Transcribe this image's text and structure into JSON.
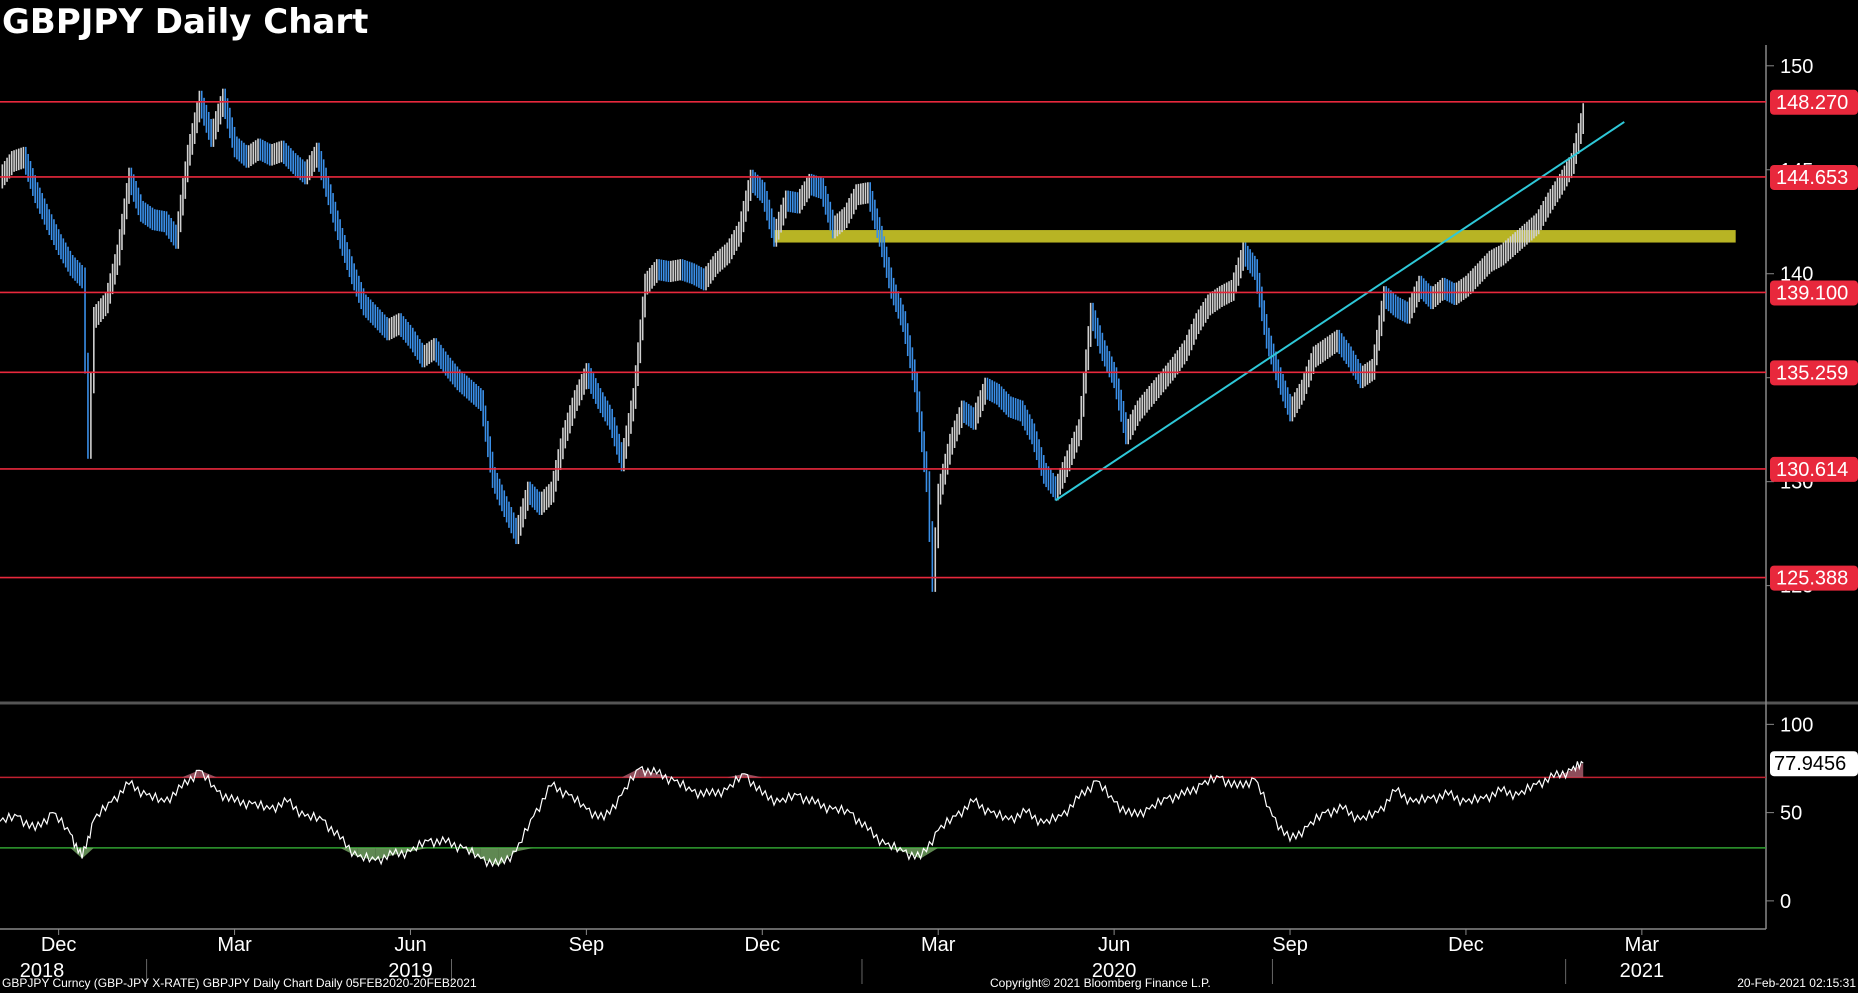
{
  "title": "GBPJPY Daily Chart",
  "footer": {
    "left": "GBPJPY Curncy (GBP-JPY X-RATE) GBPJPY Daily Chart  Daily 05FEB2020-20FEB2021",
    "center": "Copyright© 2021 Bloomberg Finance L.P.",
    "right": "20-Feb-2021 02:15:31"
  },
  "colors": {
    "background": "#000000",
    "price_up": "#d0d0d0",
    "price_down": "#3a8fe8",
    "level_line": "#e8283c",
    "trendline": "#2ec8d8",
    "zone": "#d8d42a",
    "rsi_line": "#ffffff",
    "rsi_upper": "#c02030",
    "rsi_lower": "#30a030"
  },
  "chart_data": [
    {
      "type": "line",
      "name": "price",
      "x_ticks": [
        {
          "month": "Dec",
          "year": "2018",
          "t": 1
        },
        {
          "month": "Mar",
          "year": "",
          "t": 4
        },
        {
          "month": "Jun",
          "year": "2019",
          "t": 7
        },
        {
          "month": "Sep",
          "year": "",
          "t": 10
        },
        {
          "month": "Dec",
          "year": "",
          "t": 13
        },
        {
          "month": "Mar",
          "year": "",
          "t": 16
        },
        {
          "month": "Jun",
          "year": "2020",
          "t": 19
        },
        {
          "month": "Sep",
          "year": "",
          "t": 22
        },
        {
          "month": "Dec",
          "year": "",
          "t": 25
        },
        {
          "month": "Mar",
          "year": "2021",
          "t": 28
        }
      ],
      "xlim": [
        0,
        30.1
      ],
      "ylim": [
        119.5,
        151
      ],
      "y_ticks": [
        125,
        130,
        135,
        140,
        145,
        150
      ],
      "horizontal_levels": [
        148.27,
        144.653,
        139.1,
        135.259,
        130.614,
        125.388
      ],
      "level_labels": [
        "148.270",
        "144.653",
        "139.100",
        "135.259",
        "130.614",
        "125.388"
      ],
      "last_price_hidden": "147.736",
      "trendline": {
        "x": [
          18.0,
          27.7
        ],
        "y": [
          129.1,
          147.3
        ]
      },
      "zone": {
        "x": [
          13.2,
          29.6
        ],
        "y": [
          141.5,
          142.1
        ]
      },
      "series": [
        {
          "values": [
            [
              0.0,
              144.6
            ],
            [
              0.2,
              145.4
            ],
            [
              0.4,
              145.6
            ],
            [
              0.6,
              143.9
            ],
            [
              0.8,
              142.6
            ],
            [
              1.0,
              141.4
            ],
            [
              1.2,
              140.4
            ],
            [
              1.4,
              139.8
            ],
            [
              1.5,
              131.6
            ],
            [
              1.6,
              137.9
            ],
            [
              1.8,
              138.6
            ],
            [
              2.0,
              140.9
            ],
            [
              2.2,
              144.6
            ],
            [
              2.4,
              143.0
            ],
            [
              2.6,
              142.6
            ],
            [
              2.8,
              142.5
            ],
            [
              3.0,
              141.7
            ],
            [
              3.2,
              145.7
            ],
            [
              3.4,
              148.3
            ],
            [
              3.6,
              146.6
            ],
            [
              3.8,
              148.4
            ],
            [
              4.0,
              146.1
            ],
            [
              4.2,
              145.6
            ],
            [
              4.4,
              146.0
            ],
            [
              4.6,
              145.7
            ],
            [
              4.8,
              145.9
            ],
            [
              5.0,
              145.3
            ],
            [
              5.2,
              144.8
            ],
            [
              5.4,
              145.8
            ],
            [
              5.6,
              143.8
            ],
            [
              5.8,
              141.7
            ],
            [
              6.0,
              140.0
            ],
            [
              6.2,
              138.5
            ],
            [
              6.4,
              137.9
            ],
            [
              6.6,
              137.3
            ],
            [
              6.8,
              137.6
            ],
            [
              7.0,
              136.9
            ],
            [
              7.2,
              136.0
            ],
            [
              7.4,
              136.4
            ],
            [
              7.6,
              135.6
            ],
            [
              7.8,
              134.9
            ],
            [
              8.0,
              134.4
            ],
            [
              8.2,
              133.9
            ],
            [
              8.4,
              130.2
            ],
            [
              8.6,
              128.8
            ],
            [
              8.8,
              127.5
            ],
            [
              9.0,
              129.5
            ],
            [
              9.2,
              128.9
            ],
            [
              9.4,
              129.5
            ],
            [
              9.6,
              132.1
            ],
            [
              9.8,
              133.9
            ],
            [
              10.0,
              135.2
            ],
            [
              10.2,
              134.0
            ],
            [
              10.4,
              133.0
            ],
            [
              10.6,
              131.0
            ],
            [
              10.8,
              134.0
            ],
            [
              11.0,
              139.5
            ],
            [
              11.2,
              140.2
            ],
            [
              11.4,
              140.1
            ],
            [
              11.6,
              140.2
            ],
            [
              11.8,
              140.0
            ],
            [
              12.0,
              139.7
            ],
            [
              12.2,
              140.5
            ],
            [
              12.4,
              141.0
            ],
            [
              12.6,
              142.0
            ],
            [
              12.8,
              144.5
            ],
            [
              13.0,
              143.9
            ],
            [
              13.2,
              141.8
            ],
            [
              13.4,
              143.5
            ],
            [
              13.6,
              143.4
            ],
            [
              13.8,
              144.3
            ],
            [
              14.0,
              144.1
            ],
            [
              14.2,
              142.2
            ],
            [
              14.4,
              142.7
            ],
            [
              14.6,
              143.8
            ],
            [
              14.8,
              143.9
            ],
            [
              15.0,
              141.8
            ],
            [
              15.2,
              139.3
            ],
            [
              15.4,
              137.7
            ],
            [
              15.6,
              134.8
            ],
            [
              15.8,
              130.0
            ],
            [
              15.9,
              125.2
            ],
            [
              16.0,
              129.4
            ],
            [
              16.2,
              131.8
            ],
            [
              16.4,
              133.4
            ],
            [
              16.6,
              133.0
            ],
            [
              16.8,
              134.5
            ],
            [
              17.0,
              134.2
            ],
            [
              17.2,
              133.6
            ],
            [
              17.4,
              133.4
            ],
            [
              17.6,
              132.3
            ],
            [
              17.8,
              130.4
            ],
            [
              18.0,
              129.6
            ],
            [
              18.2,
              131.0
            ],
            [
              18.4,
              132.5
            ],
            [
              18.6,
              138.1
            ],
            [
              18.8,
              136.3
            ],
            [
              19.0,
              135.0
            ],
            [
              19.2,
              132.3
            ],
            [
              19.4,
              133.4
            ],
            [
              19.6,
              134.1
            ],
            [
              19.8,
              134.8
            ],
            [
              20.0,
              135.5
            ],
            [
              20.2,
              136.3
            ],
            [
              20.4,
              137.6
            ],
            [
              20.6,
              138.5
            ],
            [
              20.8,
              138.9
            ],
            [
              21.0,
              139.2
            ],
            [
              21.2,
              141.0
            ],
            [
              21.4,
              140.2
            ],
            [
              21.6,
              136.9
            ],
            [
              21.8,
              135.0
            ],
            [
              22.0,
              133.4
            ],
            [
              22.2,
              134.4
            ],
            [
              22.4,
              136.0
            ],
            [
              22.6,
              136.4
            ],
            [
              22.8,
              136.8
            ],
            [
              23.0,
              136.0
            ],
            [
              23.2,
              135.0
            ],
            [
              23.4,
              135.4
            ],
            [
              23.6,
              138.9
            ],
            [
              23.8,
              138.4
            ],
            [
              24.0,
              138.1
            ],
            [
              24.2,
              139.4
            ],
            [
              24.4,
              138.8
            ],
            [
              24.6,
              139.3
            ],
            [
              24.8,
              139.0
            ],
            [
              25.0,
              139.4
            ],
            [
              25.2,
              140.0
            ],
            [
              25.4,
              140.6
            ],
            [
              25.6,
              140.9
            ],
            [
              25.8,
              141.4
            ],
            [
              26.0,
              141.9
            ],
            [
              26.2,
              142.4
            ],
            [
              26.4,
              143.4
            ],
            [
              26.6,
              144.3
            ],
            [
              26.8,
              145.3
            ],
            [
              27.0,
              147.7
            ]
          ]
        }
      ]
    },
    {
      "type": "line",
      "name": "rsi",
      "ylim": [
        -8,
        107
      ],
      "y_ticks": [
        0,
        50,
        100
      ],
      "thresholds": {
        "upper": 70,
        "lower": 30
      },
      "last_value_label": "77.9456",
      "xlim": [
        0,
        30.1
      ],
      "series": [
        {
          "values": [
            [
              0.0,
              45
            ],
            [
              0.3,
              48
            ],
            [
              0.6,
              40
            ],
            [
              0.9,
              50
            ],
            [
              1.2,
              38
            ],
            [
              1.4,
              24
            ],
            [
              1.6,
              46
            ],
            [
              1.9,
              56
            ],
            [
              2.2,
              66
            ],
            [
              2.5,
              60
            ],
            [
              2.8,
              56
            ],
            [
              3.1,
              64
            ],
            [
              3.4,
              74
            ],
            [
              3.7,
              62
            ],
            [
              4.0,
              56
            ],
            [
              4.3,
              55
            ],
            [
              4.6,
              52
            ],
            [
              4.9,
              56
            ],
            [
              5.2,
              48
            ],
            [
              5.5,
              46
            ],
            [
              5.8,
              35
            ],
            [
              6.1,
              25
            ],
            [
              6.4,
              23
            ],
            [
              6.7,
              26
            ],
            [
              7.0,
              28
            ],
            [
              7.3,
              34
            ],
            [
              7.6,
              33
            ],
            [
              7.9,
              30
            ],
            [
              8.2,
              24
            ],
            [
              8.5,
              20
            ],
            [
              8.8,
              28
            ],
            [
              9.1,
              48
            ],
            [
              9.4,
              65
            ],
            [
              9.7,
              60
            ],
            [
              10.0,
              52
            ],
            [
              10.3,
              46
            ],
            [
              10.6,
              60
            ],
            [
              10.9,
              75
            ],
            [
              11.2,
              72
            ],
            [
              11.5,
              68
            ],
            [
              11.8,
              62
            ],
            [
              12.1,
              60
            ],
            [
              12.4,
              63
            ],
            [
              12.7,
              72
            ],
            [
              13.0,
              60
            ],
            [
              13.3,
              56
            ],
            [
              13.6,
              60
            ],
            [
              13.9,
              55
            ],
            [
              14.2,
              52
            ],
            [
              14.5,
              50
            ],
            [
              14.8,
              40
            ],
            [
              15.1,
              32
            ],
            [
              15.4,
              28
            ],
            [
              15.7,
              24
            ],
            [
              16.0,
              40
            ],
            [
              16.3,
              48
            ],
            [
              16.6,
              56
            ],
            [
              16.9,
              50
            ],
            [
              17.2,
              46
            ],
            [
              17.5,
              50
            ],
            [
              17.8,
              44
            ],
            [
              18.1,
              48
            ],
            [
              18.4,
              58
            ],
            [
              18.7,
              68
            ],
            [
              19.0,
              56
            ],
            [
              19.3,
              48
            ],
            [
              19.6,
              52
            ],
            [
              19.9,
              58
            ],
            [
              20.2,
              60
            ],
            [
              20.5,
              66
            ],
            [
              20.8,
              70
            ],
            [
              21.1,
              64
            ],
            [
              21.4,
              69
            ],
            [
              21.7,
              48
            ],
            [
              22.0,
              34
            ],
            [
              22.3,
              42
            ],
            [
              22.6,
              50
            ],
            [
              22.9,
              52
            ],
            [
              23.2,
              46
            ],
            [
              23.5,
              50
            ],
            [
              23.8,
              62
            ],
            [
              24.1,
              56
            ],
            [
              24.4,
              58
            ],
            [
              24.7,
              60
            ],
            [
              25.0,
              56
            ],
            [
              25.3,
              58
            ],
            [
              25.6,
              62
            ],
            [
              25.9,
              60
            ],
            [
              26.2,
              66
            ],
            [
              26.5,
              70
            ],
            [
              26.8,
              74
            ],
            [
              27.0,
              78
            ]
          ]
        }
      ]
    }
  ]
}
